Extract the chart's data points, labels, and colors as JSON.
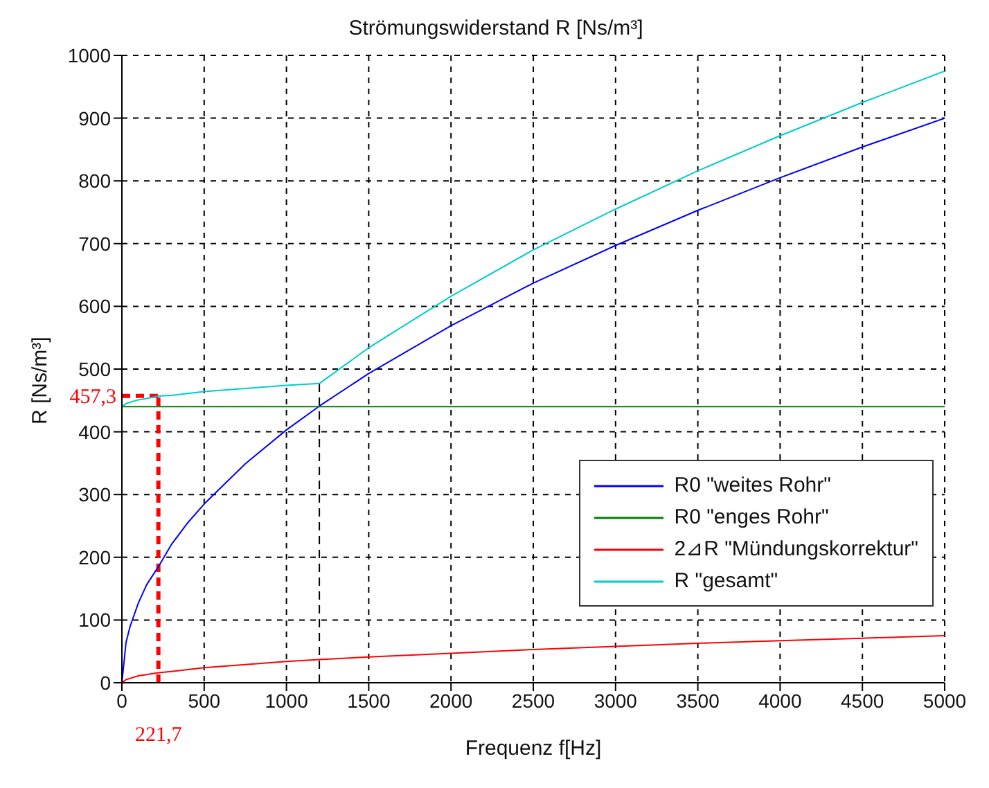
{
  "chart_data": {
    "type": "line",
    "title": "Strömungswiderstand R [Ns/m³]",
    "xlabel": "Frequenz f[Hz]",
    "ylabel": "R [Ns/m³]",
    "x": [
      0,
      25,
      50,
      100,
      150,
      221.7,
      300,
      400,
      500,
      750,
      1000,
      1200,
      1500,
      2000,
      2500,
      3000,
      3500,
      4000,
      4500,
      5000
    ],
    "series": [
      {
        "name": "R0 \"weites Rohr\"",
        "color": "#0000ff",
        "values": [
          0,
          64,
          90,
          127,
          156,
          185,
          220,
          255,
          285,
          349,
          403,
          441,
          493,
          569,
          637,
          697,
          753,
          805,
          854,
          900
        ]
      },
      {
        "name": "R0 \"enges Rohr\"",
        "color": "#008000",
        "values": [
          440,
          440,
          440,
          440,
          440,
          440,
          440,
          440,
          440,
          440,
          440,
          440,
          440,
          440,
          440,
          440,
          440,
          440,
          440,
          440
        ]
      },
      {
        "name": "2⊿R \"Mündungskorrektur\"",
        "color": "#ff0000",
        "values": [
          0,
          5,
          7,
          11,
          13,
          16,
          18,
          21,
          24,
          29,
          34,
          37,
          41,
          47,
          53,
          58,
          63,
          67,
          71,
          75
        ]
      },
      {
        "name": "R \"gesamt\"",
        "color": "#00cccc",
        "values": [
          440,
          445,
          447,
          451,
          453,
          457,
          458,
          461,
          464,
          469,
          474,
          477,
          534,
          616,
          690,
          755,
          816,
          872,
          925,
          975
        ]
      }
    ],
    "xlim": [
      0,
      5000
    ],
    "xticks": [
      0,
      500,
      1000,
      1500,
      2000,
      2500,
      3000,
      3500,
      4000,
      4500,
      5000
    ],
    "ylim": [
      0,
      1000
    ],
    "yticks": [
      0,
      100,
      200,
      300,
      400,
      500,
      600,
      700,
      800,
      900,
      1000
    ],
    "ref_lines": [
      {
        "axis": "x",
        "value": 1200,
        "color": "#000000",
        "line_style": "dashed"
      },
      {
        "axis": "x",
        "value": 221.7,
        "label": "221,7",
        "color": "#ff0000",
        "line_style": "dashed"
      },
      {
        "axis": "y",
        "value": 457.3,
        "label": "457,3",
        "color": "#ff0000",
        "line_style": "dashed"
      }
    ],
    "grid": true,
    "legend": "bottom right",
    "marker": "none",
    "line_style": "solid"
  }
}
